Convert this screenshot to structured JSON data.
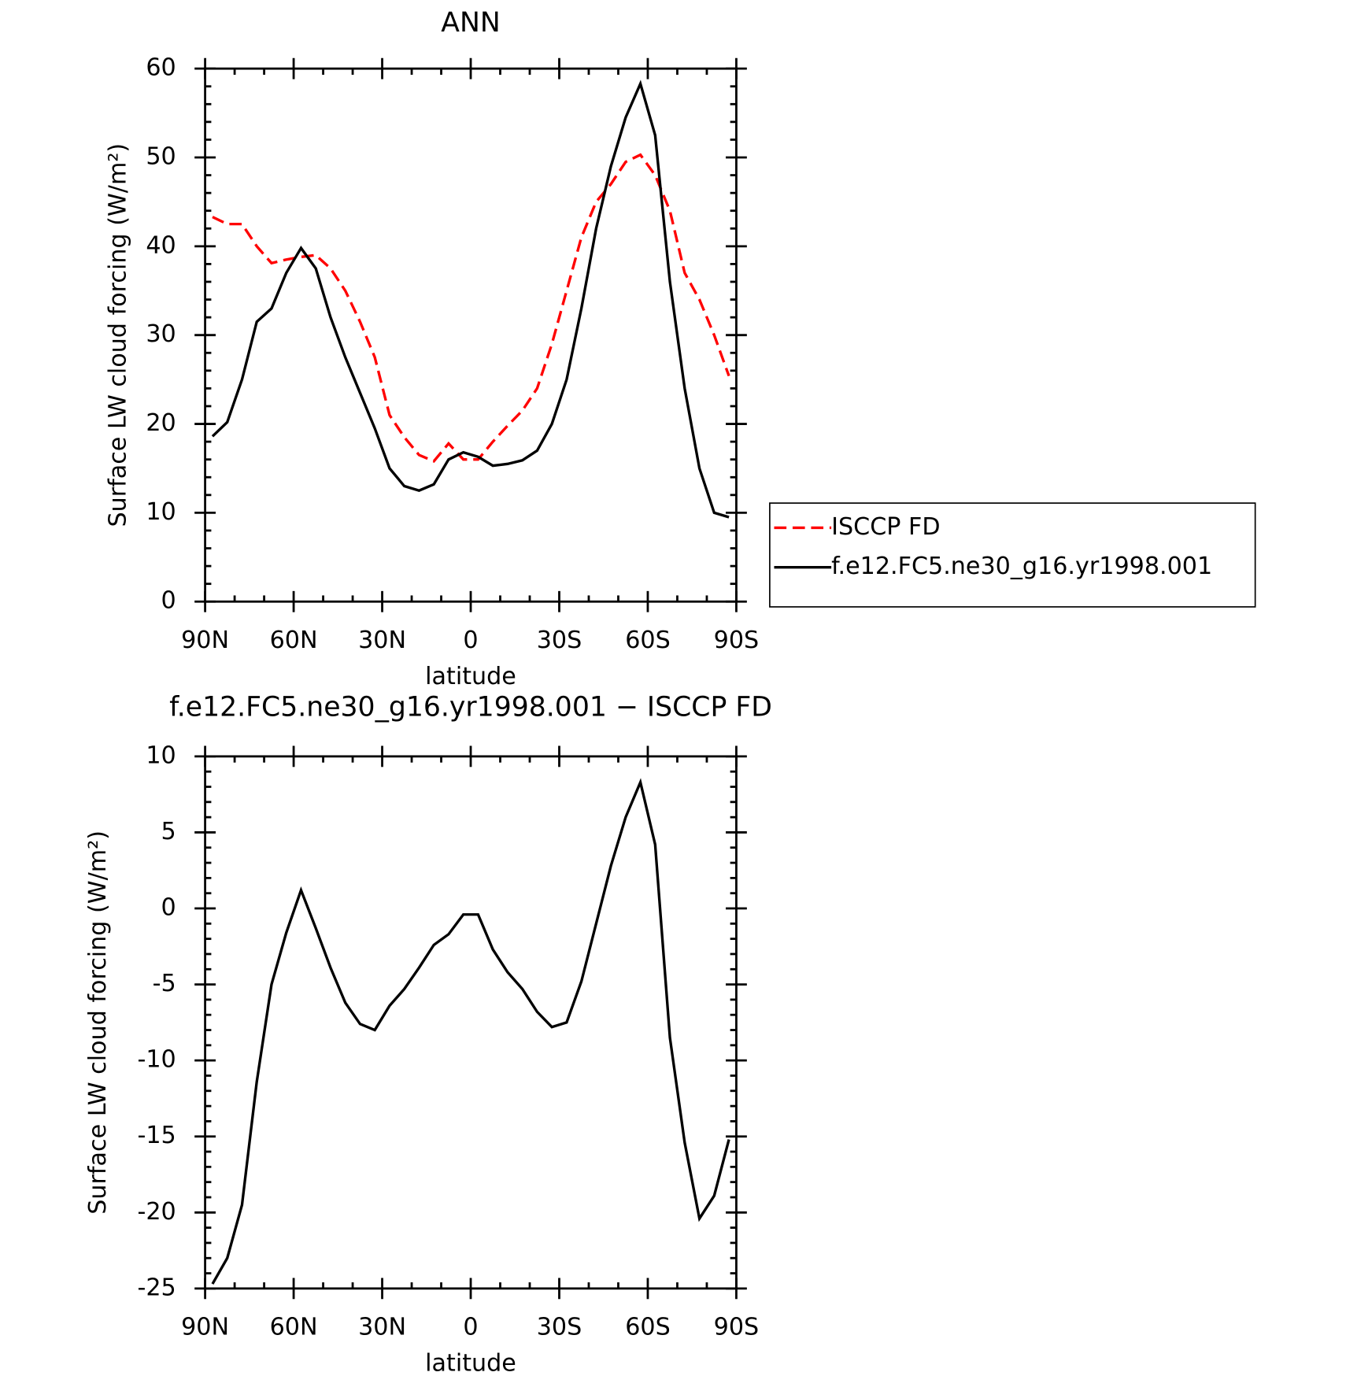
{
  "chart_data": [
    {
      "type": "line",
      "title": "ANN",
      "xlabel": "latitude",
      "ylabel": "Surface LW cloud forcing (W/m²)",
      "x": [
        87.5,
        82.5,
        77.5,
        72.5,
        67.5,
        62.5,
        57.5,
        52.5,
        47.5,
        42.5,
        37.5,
        32.5,
        27.5,
        22.5,
        17.5,
        12.5,
        7.5,
        2.5,
        -2.5,
        -7.5,
        -12.5,
        -17.5,
        -22.5,
        -27.5,
        -32.5,
        -37.5,
        -42.5,
        -47.5,
        -52.5,
        -57.5,
        -62.5,
        -67.5,
        -72.5,
        -77.5,
        -82.5,
        -87.5
      ],
      "xlim": [
        90,
        -90
      ],
      "xticks": [
        {
          "value": 90,
          "label": "90N"
        },
        {
          "value": 60,
          "label": "60N"
        },
        {
          "value": 30,
          "label": "30N"
        },
        0,
        {
          "value": -30,
          "label": "30S"
        },
        {
          "value": -60,
          "label": "60S"
        },
        {
          "value": -90,
          "label": "90S"
        }
      ],
      "ylim": [
        0,
        60
      ],
      "yticks": [
        0,
        10,
        20,
        30,
        40,
        50,
        60
      ],
      "legend": "right",
      "series": [
        {
          "name": "ISCCP FD",
          "color": "#ff0000",
          "dashed": true,
          "values": [
            43.3,
            42.5,
            42.5,
            40,
            38.1,
            38.5,
            38.8,
            39,
            37.5,
            35,
            31.5,
            27.5,
            21,
            18.5,
            16.5,
            15.8,
            17.8,
            16,
            16,
            18,
            19.8,
            21.5,
            24,
            29,
            35,
            41,
            45,
            47,
            49.5,
            50.3,
            48,
            44,
            37,
            34,
            30,
            25.4
          ]
        },
        {
          "name": "f.e12.FC5.ne30_g16.yr1998.001",
          "color": "#000000",
          "dashed": false,
          "values": [
            18.6,
            20.2,
            25,
            31.5,
            33,
            37,
            39.8,
            37.5,
            32,
            27.5,
            23.5,
            19.5,
            15,
            13,
            12.5,
            13.2,
            16,
            16.8,
            16.3,
            15.3,
            15.5,
            15.9,
            17,
            20,
            25,
            33,
            42,
            49,
            54.5,
            58.3,
            52.5,
            36,
            24,
            15,
            10,
            9.5
          ]
        }
      ]
    },
    {
      "type": "line",
      "title": "f.e12.FC5.ne30_g16.yr1998.001 − ISCCP FD",
      "xlabel": "latitude",
      "ylabel": "Surface LW cloud forcing (W/m²)",
      "x": [
        87.5,
        82.5,
        77.5,
        72.5,
        67.5,
        62.5,
        57.5,
        52.5,
        47.5,
        42.5,
        37.5,
        32.5,
        27.5,
        22.5,
        17.5,
        12.5,
        7.5,
        2.5,
        -2.5,
        -7.5,
        -12.5,
        -17.5,
        -22.5,
        -27.5,
        -32.5,
        -37.5,
        -42.5,
        -47.5,
        -52.5,
        -57.5,
        -62.5,
        -67.5,
        -72.5,
        -77.5,
        -82.5,
        -87.5
      ],
      "xlim": [
        90,
        -90
      ],
      "xticks": [
        {
          "value": 90,
          "label": "90N"
        },
        {
          "value": 60,
          "label": "60N"
        },
        {
          "value": 30,
          "label": "30N"
        },
        0,
        {
          "value": -30,
          "label": "30S"
        },
        {
          "value": -60,
          "label": "60S"
        },
        {
          "value": -90,
          "label": "90S"
        }
      ],
      "ylim": [
        -25,
        10
      ],
      "yticks": [
        -25,
        -20,
        -15,
        -10,
        -5,
        0,
        5,
        10
      ],
      "series": [
        {
          "color": "#000000",
          "dashed": false,
          "values": [
            -24.7,
            -23,
            -19.5,
            -11.4,
            -5,
            -1.6,
            1.2,
            -1.3,
            -3.9,
            -6.2,
            -7.6,
            -8,
            -6.4,
            -5.3,
            -3.9,
            -2.4,
            -1.7,
            -0.4,
            -0.4,
            -2.7,
            -4.2,
            -5.3,
            -6.8,
            -7.8,
            -7.5,
            -4.8,
            -1,
            2.8,
            6,
            8.3,
            4.2,
            -8.5,
            -15.4,
            -20.4,
            -18.9,
            -15.2
          ]
        }
      ]
    }
  ]
}
